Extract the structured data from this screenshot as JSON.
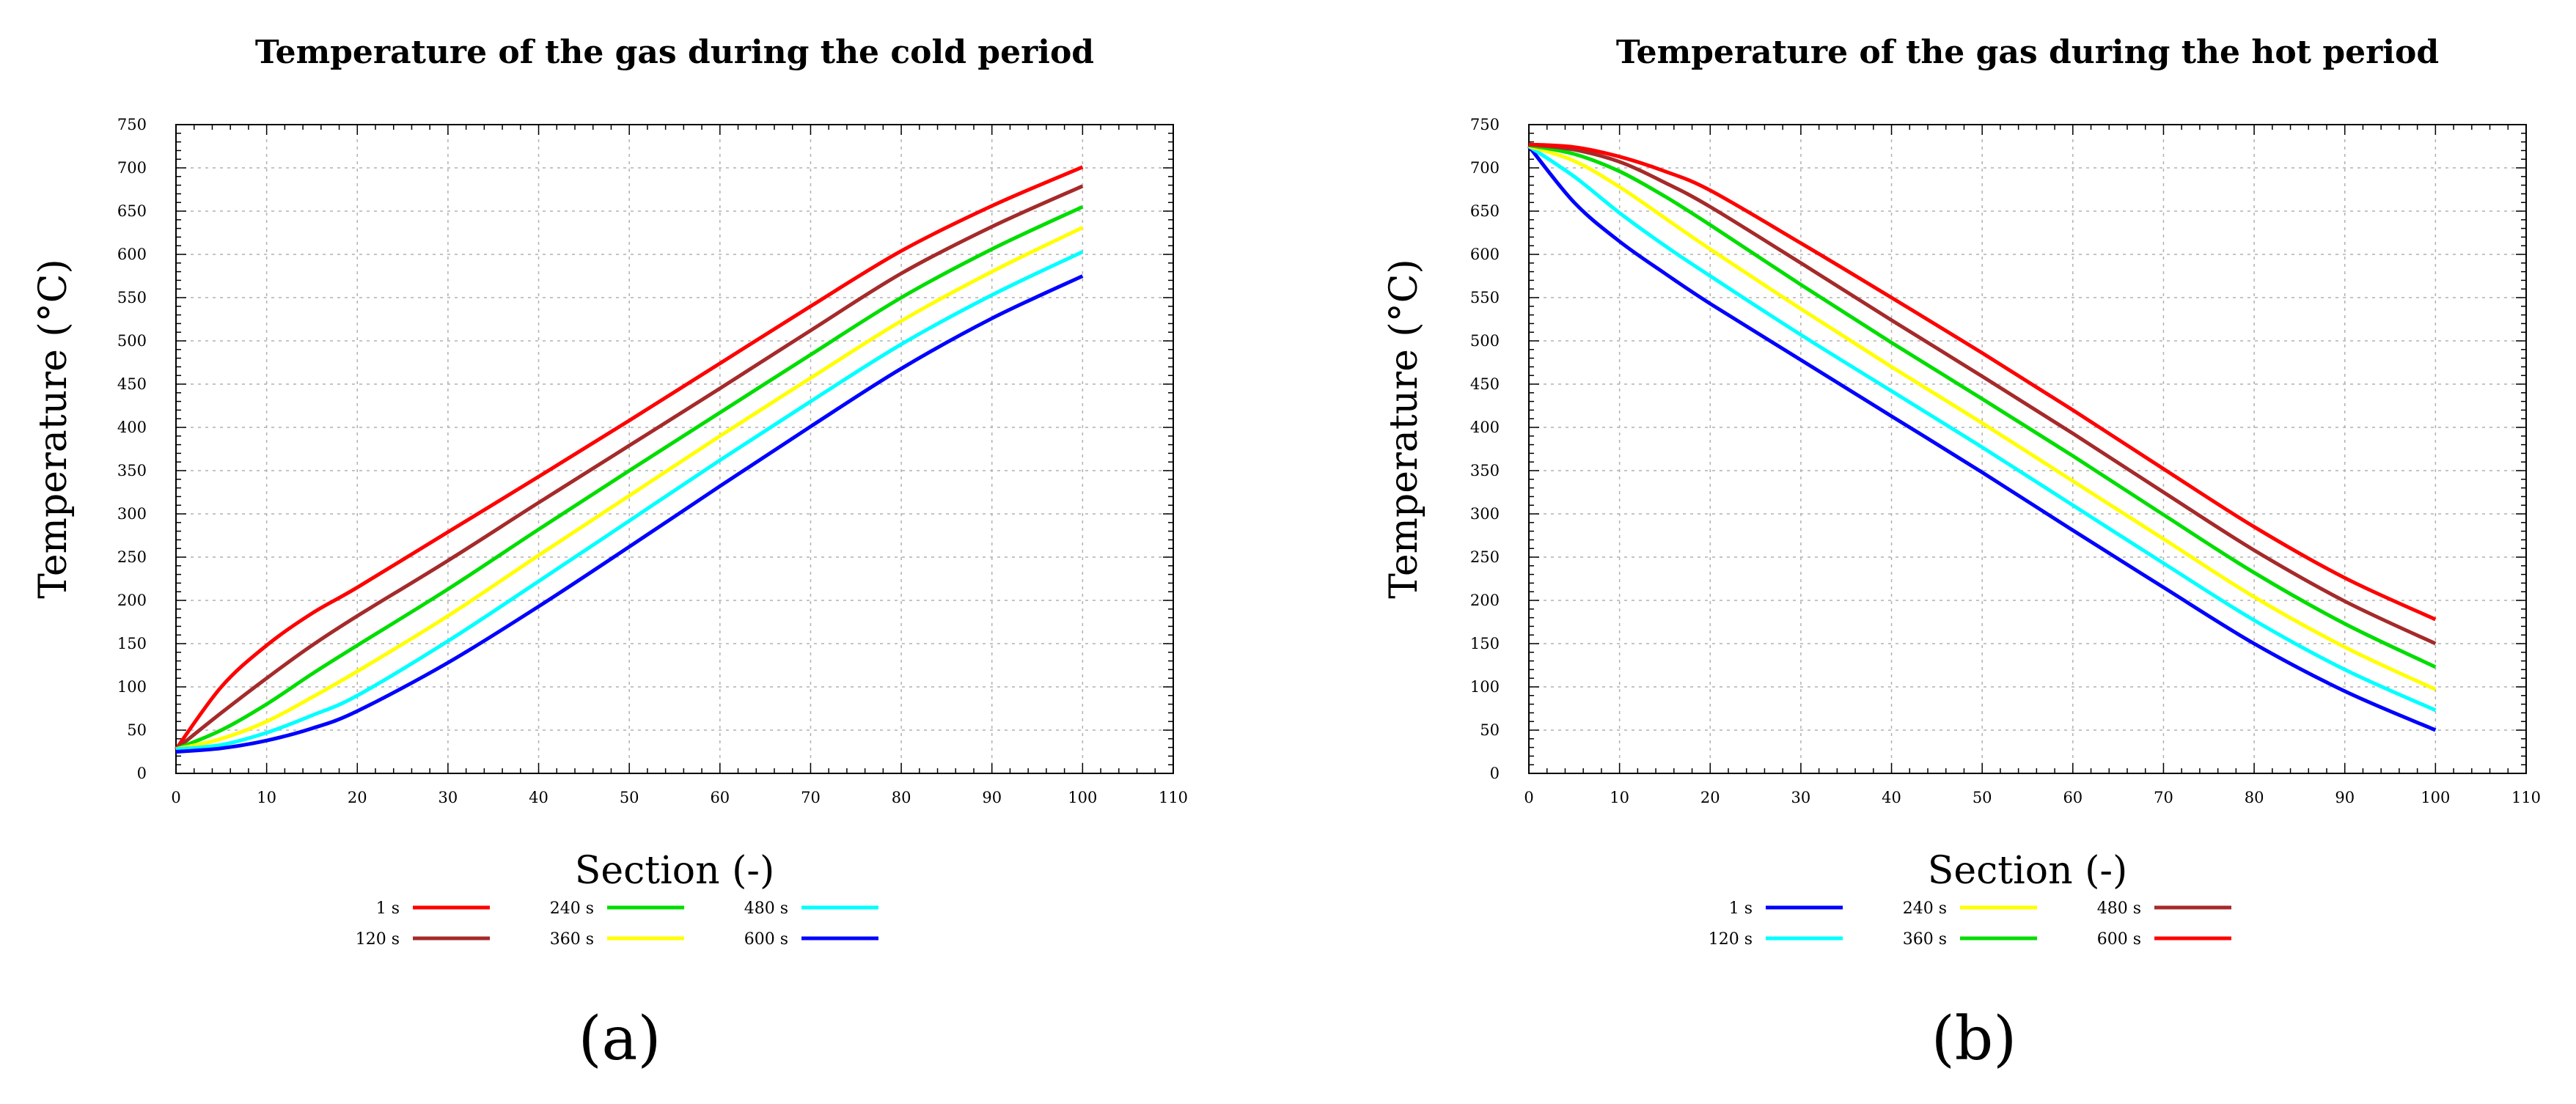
{
  "chart_data": [
    {
      "type": "line",
      "title": "Temperature of the gas during the cold period",
      "xlabel": "Section (-)",
      "ylabel": "Temperature (°C)",
      "xlim": [
        0,
        110
      ],
      "ylim": [
        0,
        750
      ],
      "xticks": [
        0,
        10,
        20,
        30,
        40,
        50,
        60,
        70,
        80,
        90,
        100,
        110
      ],
      "yticks": [
        0,
        50,
        100,
        150,
        200,
        250,
        300,
        350,
        400,
        450,
        500,
        550,
        600,
        650,
        700,
        750
      ],
      "grid": true,
      "legend_position": "bottom",
      "panel_label": "(a)",
      "x": [
        0,
        5,
        10,
        15,
        20,
        30,
        40,
        50,
        60,
        70,
        80,
        90,
        100
      ],
      "series": [
        {
          "name": "1 s",
          "color": "#ff0000",
          "values": [
            28,
            100,
            148,
            185,
            215,
            279,
            343,
            408,
            474,
            540,
            604,
            656,
            701
          ]
        },
        {
          "name": "120 s",
          "color": "#a52a2a",
          "values": [
            28,
            70,
            110,
            148,
            182,
            246,
            313,
            379,
            445,
            512,
            578,
            632,
            679
          ]
        },
        {
          "name": "240 s",
          "color": "#00dd00",
          "values": [
            28,
            50,
            80,
            115,
            148,
            213,
            282,
            350,
            417,
            484,
            550,
            606,
            655
          ]
        },
        {
          "name": "360 s",
          "color": "#ffff00",
          "values": [
            28,
            40,
            60,
            88,
            118,
            182,
            252,
            321,
            390,
            457,
            523,
            580,
            631
          ]
        },
        {
          "name": "480 s",
          "color": "#00ffff",
          "values": [
            28,
            33,
            47,
            67,
            90,
            153,
            222,
            292,
            362,
            430,
            496,
            553,
            603
          ]
        },
        {
          "name": "600 s",
          "color": "#0000ff",
          "values": [
            25,
            29,
            38,
            52,
            72,
            128,
            193,
            262,
            332,
            401,
            468,
            526,
            575
          ]
        }
      ]
    },
    {
      "type": "line",
      "title": "Temperature of the gas during the hot period",
      "xlabel": "Section (-)",
      "ylabel": "Temperature (°C)",
      "xlim": [
        0,
        110
      ],
      "ylim": [
        0,
        750
      ],
      "xticks": [
        0,
        10,
        20,
        30,
        40,
        50,
        60,
        70,
        80,
        90,
        100,
        110
      ],
      "yticks": [
        0,
        50,
        100,
        150,
        200,
        250,
        300,
        350,
        400,
        450,
        500,
        550,
        600,
        650,
        700,
        750
      ],
      "grid": true,
      "legend_position": "bottom",
      "panel_label": "(b)",
      "x": [
        0,
        5,
        10,
        15,
        20,
        30,
        40,
        50,
        60,
        70,
        80,
        90,
        100
      ],
      "series": [
        {
          "name": "1 s",
          "color": "#0000ff",
          "values": [
            725,
            660,
            615,
            578,
            543,
            478,
            413,
            348,
            281,
            215,
            150,
            95,
            50
          ]
        },
        {
          "name": "120 s",
          "color": "#00ffff",
          "values": [
            725,
            690,
            648,
            610,
            575,
            507,
            442,
            377,
            310,
            243,
            177,
            120,
            73
          ]
        },
        {
          "name": "240 s",
          "color": "#ffff00",
          "values": [
            725,
            708,
            678,
            642,
            606,
            537,
            470,
            405,
            338,
            271,
            204,
            146,
            97
          ]
        },
        {
          "name": "360 s",
          "color": "#00dd00",
          "values": [
            726,
            716,
            696,
            667,
            634,
            565,
            498,
            433,
            367,
            299,
            232,
            173,
            123
          ]
        },
        {
          "name": "480 s",
          "color": "#a52a2a",
          "values": [
            727,
            721,
            707,
            683,
            655,
            590,
            524,
            459,
            393,
            325,
            258,
            199,
            150
          ]
        },
        {
          "name": "600 s",
          "color": "#ff0000",
          "values": [
            727,
            724,
            713,
            696,
            674,
            613,
            550,
            486,
            420,
            352,
            285,
            226,
            178
          ]
        }
      ]
    }
  ]
}
